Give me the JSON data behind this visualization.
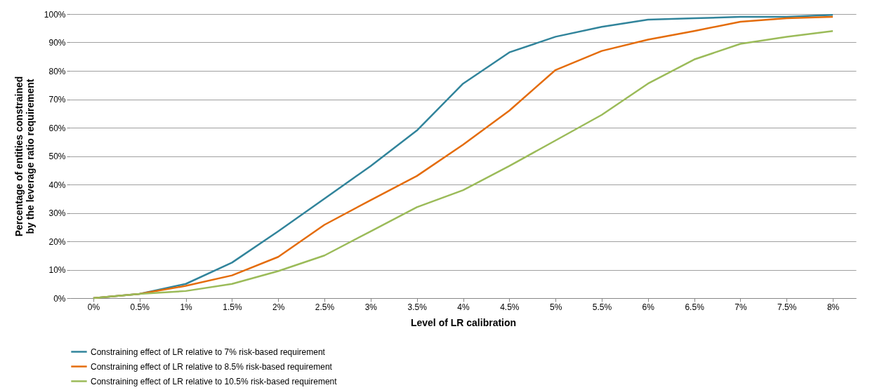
{
  "chart_data": {
    "type": "line",
    "xlabel": "Level of LR calibration",
    "ylabel": "Percentage of entities constrained by the leverage ratio requirement",
    "categories": [
      "0%",
      "0.5%",
      "1%",
      "1.5%",
      "2%",
      "2.5%",
      "3%",
      "3.5%",
      "4%",
      "4.5%",
      "5%",
      "5.5%",
      "6%",
      "6.5%",
      "7%",
      "7.5%",
      "8%"
    ],
    "series": [
      {
        "name": "Constraining effect of LR relative to 7% risk-based requirement",
        "color": "#31849b",
        "values": [
          0,
          1.5,
          5,
          12.5,
          23.5,
          35,
          46.5,
          59,
          75.5,
          86.5,
          92,
          95.5,
          98,
          98.5,
          99,
          99,
          99.7
        ]
      },
      {
        "name": "Constraining effect of LR relative to 8.5% risk-based requirement",
        "color": "#e46c0a",
        "values": [
          0,
          1.5,
          4.3,
          8,
          14.5,
          25.8,
          34.5,
          43,
          54,
          66,
          80.3,
          87,
          91,
          94,
          97.3,
          98.5,
          99
        ]
      },
      {
        "name": "Constraining effect of LR relative to 10.5% risk-based requirement",
        "color": "#9bbb59",
        "values": [
          0,
          1.5,
          2.5,
          5,
          9.5,
          15,
          23.5,
          32,
          38,
          46.5,
          55.5,
          64.5,
          75.5,
          84,
          89.5,
          92,
          94
        ]
      }
    ],
    "ylim": [
      0,
      100
    ],
    "yticks": [
      {
        "value": 0,
        "label": "0%"
      },
      {
        "value": 10,
        "label": "10%"
      },
      {
        "value": 20,
        "label": "20%"
      },
      {
        "value": 30,
        "label": "30%"
      },
      {
        "value": 40,
        "label": "40%"
      },
      {
        "value": 50,
        "label": "50%"
      },
      {
        "value": 60,
        "label": "60%"
      },
      {
        "value": 70,
        "label": "70%"
      },
      {
        "value": 80,
        "label": "80%"
      },
      {
        "value": 90,
        "label": "90%"
      },
      {
        "value": 100,
        "label": "100%"
      }
    ],
    "grid": "y",
    "legend": "bottom",
    "line_style": "solid"
  }
}
